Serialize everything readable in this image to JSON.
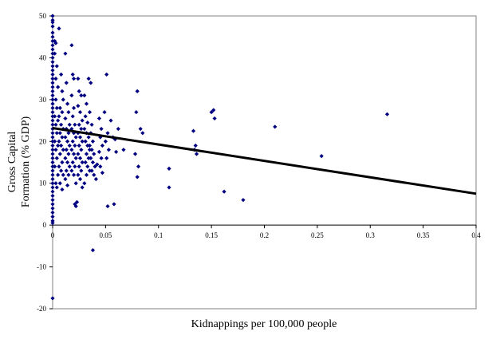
{
  "chart_data": {
    "type": "scatter",
    "title": "",
    "xlabel": "Kidnappings per 100,000 people",
    "ylabel_lines": [
      "Gross Capital",
      "Formation (% GDP)"
    ],
    "xlim": [
      0,
      0.4
    ],
    "ylim": [
      -20,
      50
    ],
    "x_ticks": [
      0,
      0.05,
      0.1,
      0.15,
      0.2,
      0.25,
      0.3,
      0.35,
      0.4
    ],
    "x_tick_labels": [
      "0",
      "0.05",
      "0.1",
      "0.15",
      "0.2",
      "0.25",
      "0.3",
      "0.35",
      "0.4"
    ],
    "y_ticks": [
      -20,
      -10,
      0,
      10,
      20,
      30,
      40,
      50
    ],
    "y_tick_labels": [
      "-20",
      "-10",
      "0",
      "10",
      "20",
      "30",
      "40",
      "50"
    ],
    "grid": false,
    "legend": "none",
    "marker_color": "#000080",
    "trendline_color": "#000000",
    "trendline": {
      "x": [
        0,
        0.4
      ],
      "y": [
        23.2,
        7.5
      ]
    },
    "points": [
      [
        0,
        50
      ],
      [
        0,
        49
      ],
      [
        0,
        48.5
      ],
      [
        0,
        47.5
      ],
      [
        0,
        46
      ],
      [
        0,
        45
      ],
      [
        0,
        44
      ],
      [
        0,
        43
      ],
      [
        0,
        42
      ],
      [
        0,
        41
      ],
      [
        0,
        40
      ],
      [
        0,
        39
      ],
      [
        0,
        38
      ],
      [
        0,
        37
      ],
      [
        0,
        36
      ],
      [
        0,
        35
      ],
      [
        0,
        34
      ],
      [
        0,
        33
      ],
      [
        0,
        32
      ],
      [
        0,
        31
      ],
      [
        0,
        30
      ],
      [
        0,
        29
      ],
      [
        0,
        28
      ],
      [
        0,
        27
      ],
      [
        0,
        26
      ],
      [
        0,
        25
      ],
      [
        0,
        24
      ],
      [
        0,
        23
      ],
      [
        0,
        22
      ],
      [
        0,
        21
      ],
      [
        0,
        20
      ],
      [
        0,
        19
      ],
      [
        0,
        18
      ],
      [
        0,
        17
      ],
      [
        0,
        16
      ],
      [
        0,
        15
      ],
      [
        0,
        14
      ],
      [
        0,
        13
      ],
      [
        0,
        12
      ],
      [
        0,
        11
      ],
      [
        0,
        10
      ],
      [
        0,
        9
      ],
      [
        0,
        8
      ],
      [
        0,
        7
      ],
      [
        0,
        6
      ],
      [
        0,
        5
      ],
      [
        0,
        4
      ],
      [
        0,
        3
      ],
      [
        0,
        2
      ],
      [
        0,
        1
      ],
      [
        0,
        0.5
      ],
      [
        0,
        -17.5
      ],
      [
        0.002,
        44
      ],
      [
        0.003,
        43.5
      ],
      [
        0.002,
        41
      ],
      [
        0.004,
        38
      ],
      [
        0.003,
        35
      ],
      [
        0.005,
        33
      ],
      [
        0.003,
        30
      ],
      [
        0.004,
        28
      ],
      [
        0.002,
        26
      ],
      [
        0.005,
        25
      ],
      [
        0.003,
        24
      ],
      [
        0.004,
        22
      ],
      [
        0.002,
        20
      ],
      [
        0.005,
        19
      ],
      [
        0.003,
        18
      ],
      [
        0.004,
        16
      ],
      [
        0.002,
        14
      ],
      [
        0.005,
        12
      ],
      [
        0.003,
        10
      ],
      [
        0.004,
        9
      ],
      [
        0.006,
        47
      ],
      [
        0.008,
        36
      ],
      [
        0.009,
        32
      ],
      [
        0.01,
        30
      ],
      [
        0.007,
        28
      ],
      [
        0.009,
        27
      ],
      [
        0.006,
        26
      ],
      [
        0.008,
        24
      ],
      [
        0.01,
        23
      ],
      [
        0.007,
        22
      ],
      [
        0.009,
        21
      ],
      [
        0.006,
        20
      ],
      [
        0.008,
        19
      ],
      [
        0.01,
        18
      ],
      [
        0.007,
        17
      ],
      [
        0.009,
        15
      ],
      [
        0.006,
        14
      ],
      [
        0.008,
        13
      ],
      [
        0.01,
        12
      ],
      [
        0.007,
        10
      ],
      [
        0.009,
        8.5
      ],
      [
        0.012,
        41
      ],
      [
        0.013,
        34
      ],
      [
        0.014,
        29
      ],
      [
        0.015,
        27
      ],
      [
        0.012,
        25.5
      ],
      [
        0.016,
        24
      ],
      [
        0.013,
        23
      ],
      [
        0.015,
        22
      ],
      [
        0.012,
        21
      ],
      [
        0.014,
        20
      ],
      [
        0.016,
        19
      ],
      [
        0.013,
        18
      ],
      [
        0.015,
        17
      ],
      [
        0.012,
        16
      ],
      [
        0.014,
        15
      ],
      [
        0.016,
        14
      ],
      [
        0.013,
        13
      ],
      [
        0.015,
        12
      ],
      [
        0.012,
        11
      ],
      [
        0.014,
        9.5
      ],
      [
        0.018,
        43
      ],
      [
        0.019,
        36
      ],
      [
        0.02,
        35
      ],
      [
        0.018,
        31
      ],
      [
        0.02,
        28
      ],
      [
        0.019,
        26
      ],
      [
        0.021,
        24
      ],
      [
        0.018,
        23
      ],
      [
        0.02,
        22
      ],
      [
        0.022,
        21
      ],
      [
        0.019,
        20
      ],
      [
        0.021,
        19
      ],
      [
        0.018,
        18
      ],
      [
        0.02,
        17
      ],
      [
        0.022,
        16
      ],
      [
        0.019,
        15
      ],
      [
        0.021,
        14
      ],
      [
        0.018,
        13
      ],
      [
        0.02,
        12
      ],
      [
        0.022,
        10
      ],
      [
        0.021,
        5
      ],
      [
        0.022,
        4.5
      ],
      [
        0.023,
        5.5
      ],
      [
        0.024,
        35
      ],
      [
        0.025,
        32
      ],
      [
        0.027,
        31
      ],
      [
        0.024,
        28.5
      ],
      [
        0.026,
        27
      ],
      [
        0.028,
        25
      ],
      [
        0.025,
        24
      ],
      [
        0.027,
        23
      ],
      [
        0.024,
        22
      ],
      [
        0.026,
        21
      ],
      [
        0.028,
        20
      ],
      [
        0.025,
        19
      ],
      [
        0.027,
        18
      ],
      [
        0.024,
        17
      ],
      [
        0.026,
        16
      ],
      [
        0.028,
        15
      ],
      [
        0.025,
        14
      ],
      [
        0.027,
        13
      ],
      [
        0.024,
        12
      ],
      [
        0.026,
        11
      ],
      [
        0.028,
        9
      ],
      [
        0.03,
        31
      ],
      [
        0.032,
        29
      ],
      [
        0.031,
        26
      ],
      [
        0.033,
        24.5
      ],
      [
        0.03,
        23
      ],
      [
        0.032,
        22
      ],
      [
        0.034,
        21
      ],
      [
        0.031,
        20
      ],
      [
        0.033,
        19
      ],
      [
        0.035,
        18
      ],
      [
        0.032,
        17
      ],
      [
        0.034,
        16
      ],
      [
        0.031,
        15
      ],
      [
        0.033,
        14
      ],
      [
        0.035,
        13
      ],
      [
        0.032,
        12
      ],
      [
        0.03,
        10
      ],
      [
        0.034,
        35
      ],
      [
        0.036,
        34
      ],
      [
        0.035,
        27
      ],
      [
        0.037,
        24
      ],
      [
        0.036,
        22
      ],
      [
        0.038,
        20
      ],
      [
        0.035,
        19
      ],
      [
        0.037,
        18
      ],
      [
        0.039,
        17
      ],
      [
        0.036,
        16
      ],
      [
        0.038,
        15
      ],
      [
        0.04,
        14
      ],
      [
        0.037,
        13
      ],
      [
        0.039,
        12
      ],
      [
        0.042,
        14.5
      ],
      [
        0.041,
        11
      ],
      [
        0.038,
        -6
      ],
      [
        0.044,
        25.5
      ],
      [
        0.046,
        23
      ],
      [
        0.045,
        21
      ],
      [
        0.047,
        19
      ],
      [
        0.044,
        17.5
      ],
      [
        0.046,
        16
      ],
      [
        0.045,
        14
      ],
      [
        0.047,
        12.5
      ],
      [
        0.051,
        36
      ],
      [
        0.049,
        27
      ],
      [
        0.052,
        22
      ],
      [
        0.05,
        20
      ],
      [
        0.053,
        18
      ],
      [
        0.051,
        16
      ],
      [
        0.052,
        4.5
      ],
      [
        0.058,
        5
      ],
      [
        0.055,
        25
      ],
      [
        0.057,
        21
      ],
      [
        0.059,
        20.5
      ],
      [
        0.06,
        17.5
      ],
      [
        0.062,
        23
      ],
      [
        0.067,
        18
      ],
      [
        0.08,
        32
      ],
      [
        0.079,
        27
      ],
      [
        0.083,
        23
      ],
      [
        0.085,
        22
      ],
      [
        0.078,
        17
      ],
      [
        0.081,
        14
      ],
      [
        0.08,
        11.5
      ],
      [
        0.11,
        13.5
      ],
      [
        0.11,
        9
      ],
      [
        0.133,
        22.5
      ],
      [
        0.135,
        19
      ],
      [
        0.134,
        18
      ],
      [
        0.136,
        17
      ],
      [
        0.15,
        27
      ],
      [
        0.152,
        27.5
      ],
      [
        0.153,
        25.5
      ],
      [
        0.162,
        8
      ],
      [
        0.18,
        6
      ],
      [
        0.21,
        23.5
      ],
      [
        0.254,
        16.5
      ],
      [
        0.316,
        26.5
      ]
    ]
  }
}
